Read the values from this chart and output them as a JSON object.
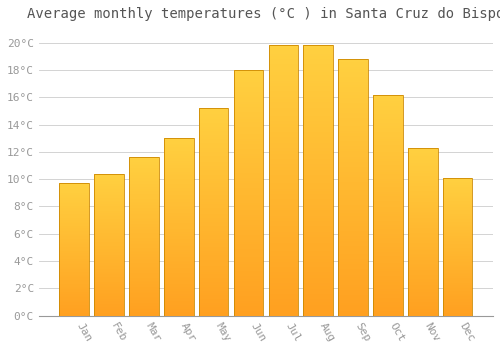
{
  "title": "Average monthly temperatures (°C ) in Santa Cruz do Bispo",
  "months": [
    "Jan",
    "Feb",
    "Mar",
    "Apr",
    "May",
    "Jun",
    "Jul",
    "Aug",
    "Sep",
    "Oct",
    "Nov",
    "Dec"
  ],
  "values": [
    9.7,
    10.4,
    11.6,
    13.0,
    15.2,
    18.0,
    19.8,
    19.8,
    18.8,
    16.2,
    12.3,
    10.1
  ],
  "bar_color_top": "#FFD040",
  "bar_color_bottom": "#FFA020",
  "bar_edge_color": "#CC8800",
  "ylim": [
    0,
    21
  ],
  "yticks": [
    0,
    2,
    4,
    6,
    8,
    10,
    12,
    14,
    16,
    18,
    20
  ],
  "ytick_labels": [
    "0°C",
    "2°C",
    "4°C",
    "6°C",
    "8°C",
    "10°C",
    "12°C",
    "14°C",
    "16°C",
    "18°C",
    "20°C"
  ],
  "background_color": "#FFFFFF",
  "grid_color": "#CCCCCC",
  "title_fontsize": 10,
  "tick_fontsize": 8,
  "bar_width": 0.85
}
